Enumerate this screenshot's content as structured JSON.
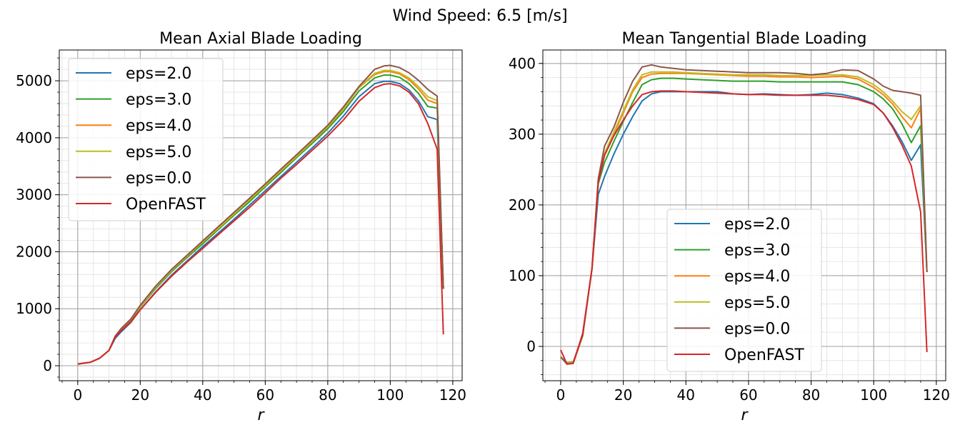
{
  "suptitle": "Wind Speed: 6.5 [m/s]",
  "colors": {
    "eps=2.0": "#1f77b4",
    "eps=3.0": "#2ca02c",
    "eps=4.0": "#ff7f0e",
    "eps=5.0": "#bcbd22",
    "eps=0.0": "#8c564b",
    "OpenFAST": "#d62728"
  },
  "chart_data": [
    {
      "type": "line",
      "title": "Mean Axial Blade Loading",
      "xlabel": "r",
      "ylabel": "",
      "xlim": [
        -5.9,
        123
      ],
      "ylim": [
        -263,
        5540
      ],
      "xticks": [
        0,
        20,
        40,
        60,
        80,
        100,
        120
      ],
      "yticks": [
        0,
        1000,
        2000,
        3000,
        4000,
        5000
      ],
      "grid": true,
      "legend": "upper-left",
      "x": [
        0,
        2,
        4,
        7,
        10,
        12,
        14,
        17,
        20,
        25,
        30,
        35,
        40,
        45,
        50,
        55,
        60,
        65,
        70,
        75,
        80,
        85,
        90,
        95,
        98,
        100,
        103,
        106,
        109,
        112,
        115,
        117
      ],
      "series": [
        {
          "name": "eps=2.0",
          "values": [
            30,
            45,
            60,
            130,
            270,
            480,
            600,
            760,
            980,
            1300,
            1590,
            1840,
            2090,
            2330,
            2570,
            2820,
            3070,
            3320,
            3570,
            3820,
            4080,
            4380,
            4720,
            4950,
            4990,
            4990,
            4950,
            4840,
            4650,
            4370,
            4320,
            1350
          ]
        },
        {
          "name": "eps=3.0",
          "values": [
            30,
            45,
            60,
            130,
            270,
            510,
            640,
            800,
            1030,
            1360,
            1650,
            1900,
            2140,
            2390,
            2640,
            2880,
            3140,
            3390,
            3650,
            3900,
            4160,
            4460,
            4820,
            5050,
            5100,
            5100,
            5060,
            4950,
            4780,
            4550,
            4520,
            1350
          ]
        },
        {
          "name": "eps=4.0",
          "values": [
            30,
            45,
            60,
            130,
            270,
            515,
            650,
            810,
            1040,
            1380,
            1670,
            1920,
            2170,
            2410,
            2660,
            2910,
            3160,
            3420,
            3670,
            3930,
            4190,
            4500,
            4880,
            5110,
            5160,
            5160,
            5120,
            5020,
            4860,
            4660,
            4600,
            1350
          ]
        },
        {
          "name": "eps=5.0",
          "values": [
            30,
            45,
            60,
            130,
            270,
            515,
            650,
            815,
            1045,
            1385,
            1675,
            1925,
            2175,
            2415,
            2665,
            2915,
            3165,
            3425,
            3675,
            3935,
            4195,
            4510,
            4890,
            5130,
            5180,
            5180,
            5140,
            5050,
            4900,
            4720,
            4650,
            1350
          ]
        },
        {
          "name": "eps=0.0",
          "values": [
            30,
            45,
            60,
            130,
            270,
            520,
            660,
            820,
            1060,
            1400,
            1690,
            1940,
            2190,
            2440,
            2690,
            2940,
            3190,
            3450,
            3700,
            3960,
            4220,
            4540,
            4900,
            5200,
            5260,
            5270,
            5230,
            5140,
            5010,
            4850,
            4730,
            1350
          ]
        },
        {
          "name": "OpenFAST",
          "values": [
            30,
            45,
            60,
            130,
            270,
            500,
            620,
            770,
            980,
            1290,
            1570,
            1820,
            2060,
            2300,
            2540,
            2780,
            3030,
            3290,
            3530,
            3780,
            4030,
            4310,
            4640,
            4880,
            4940,
            4950,
            4910,
            4800,
            4600,
            4250,
            3800,
            550
          ]
        }
      ]
    },
    {
      "type": "line",
      "title": "Mean Tangential Blade Loading",
      "xlabel": "r",
      "ylabel": "",
      "xlim": [
        -5.7,
        123
      ],
      "ylim": [
        -48.5,
        419
      ],
      "xticks": [
        0,
        20,
        40,
        60,
        80,
        100,
        120
      ],
      "yticks": [
        0,
        100,
        200,
        300,
        400
      ],
      "grid": true,
      "legend": "lower-center",
      "x": [
        0,
        2,
        4,
        7,
        10,
        12,
        14,
        17,
        20,
        23,
        26,
        29,
        32,
        36,
        40,
        45,
        50,
        55,
        60,
        65,
        70,
        75,
        80,
        85,
        90,
        95,
        100,
        103,
        106,
        109,
        112,
        115,
        117
      ],
      "series": [
        {
          "name": "eps=2.0",
          "values": [
            -15,
            -23,
            -22,
            15,
            110,
            215,
            240,
            272,
            300,
            325,
            347,
            357,
            360,
            360,
            360,
            360,
            360,
            357,
            356,
            357,
            356,
            355,
            356,
            358,
            356,
            351,
            343,
            330,
            312,
            290,
            263,
            285,
            105
          ]
        },
        {
          "name": "eps=3.0",
          "values": [
            -15,
            -23,
            -22,
            15,
            110,
            230,
            260,
            290,
            318,
            345,
            370,
            377,
            379,
            379,
            378,
            377,
            376,
            375,
            375,
            375,
            374,
            374,
            374,
            374,
            374,
            370,
            360,
            350,
            336,
            315,
            288,
            312,
            105
          ]
        },
        {
          "name": "eps=4.0",
          "values": [
            -15,
            -24,
            -23,
            15,
            110,
            235,
            270,
            300,
            330,
            360,
            380,
            385,
            386,
            386,
            386,
            385,
            384,
            383,
            382,
            382,
            381,
            381,
            380,
            381,
            382,
            378,
            366,
            356,
            343,
            325,
            309,
            336,
            105
          ]
        },
        {
          "name": "eps=5.0",
          "values": [
            -15,
            -24,
            -23,
            15,
            110,
            236,
            273,
            303,
            333,
            363,
            384,
            388,
            388,
            388,
            387,
            386,
            385,
            384,
            384,
            384,
            383,
            383,
            383,
            384,
            384,
            381,
            370,
            360,
            347,
            332,
            321,
            340,
            105
          ]
        },
        {
          "name": "eps=0.0",
          "values": [
            -15,
            -25,
            -24,
            15,
            110,
            237,
            283,
            310,
            345,
            375,
            395,
            398,
            395,
            393,
            391,
            390,
            389,
            388,
            387,
            387,
            387,
            386,
            384,
            386,
            391,
            390,
            378,
            368,
            362,
            360,
            358,
            355,
            105
          ]
        },
        {
          "name": "OpenFAST",
          "values": [
            -5,
            -25,
            -24,
            18,
            110,
            232,
            270,
            298,
            320,
            340,
            356,
            360,
            361,
            361,
            360,
            359,
            358,
            357,
            356,
            356,
            355,
            355,
            355,
            355,
            353,
            349,
            342,
            330,
            310,
            285,
            255,
            190,
            -8
          ]
        }
      ]
    }
  ]
}
